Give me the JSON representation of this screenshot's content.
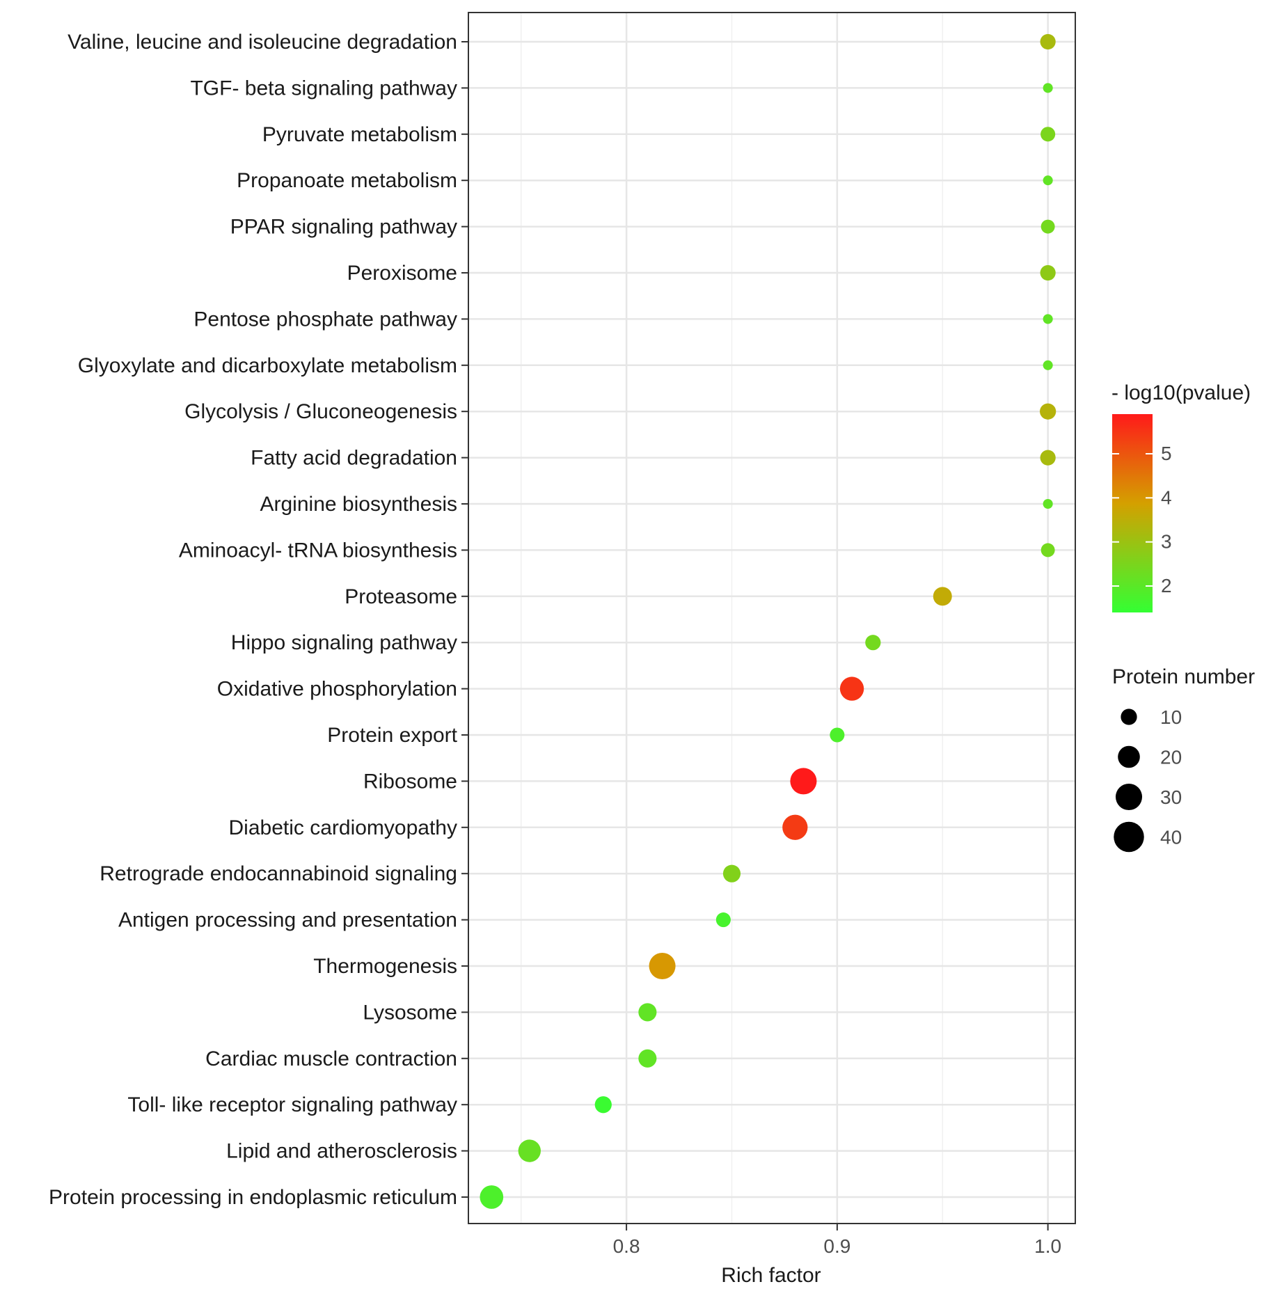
{
  "chart_data": {
    "type": "scatter",
    "xlabel": "Rich factor",
    "ylabel": "",
    "xlim": [
      0.725,
      1.013
    ],
    "x_ticks": [
      0.8,
      0.9,
      1.0
    ],
    "x_tick_labels": [
      "0.8",
      "0.9",
      "1.0"
    ],
    "grid": true,
    "color_legend": {
      "title": "- log10(pvalue)",
      "range": [
        1.4,
        5.9
      ],
      "ticks": [
        2,
        3,
        4,
        5
      ],
      "tick_labels": [
        "2",
        "3",
        "4",
        "5"
      ],
      "low_color": "#33ff33",
      "mid_color": "#d4a000",
      "high_color": "#ff1a1a"
    },
    "size_legend": {
      "title": "Protein number",
      "values": [
        10,
        20,
        30,
        40
      ],
      "labels": [
        "10",
        "20",
        "30",
        "40"
      ],
      "color": "#000000"
    },
    "categories": [
      "Valine, leucine and isoleucine degradation",
      "TGF- beta signaling pathway",
      "Pyruvate metabolism",
      "Propanoate metabolism",
      "PPAR signaling pathway",
      "Peroxisome",
      "Pentose phosphate pathway",
      "Glyoxylate and dicarboxylate metabolism",
      "Glycolysis / Gluconeogenesis",
      "Fatty acid degradation",
      "Arginine biosynthesis",
      "Aminoacyl- tRNA biosynthesis",
      "Proteasome",
      "Hippo signaling pathway",
      "Oxidative phosphorylation",
      "Protein export",
      "Ribosome",
      "Diabetic cardiomyopathy",
      "Retrograde endocannabinoid signaling",
      "Antigen processing and presentation",
      "Thermogenesis",
      "Lysosome",
      "Cardiac muscle contraction",
      "Toll- like receptor signaling pathway",
      "Lipid and atherosclerosis",
      "Protein processing in endoplasmic reticulum"
    ],
    "rich_factor": [
      1.0,
      1.0,
      1.0,
      1.0,
      1.0,
      1.0,
      1.0,
      1.0,
      1.0,
      1.0,
      1.0,
      1.0,
      0.95,
      0.917,
      0.907,
      0.9,
      0.884,
      0.88,
      0.85,
      0.846,
      0.817,
      0.81,
      0.81,
      0.789,
      0.754,
      0.736
    ],
    "protein_number": [
      9,
      3,
      8,
      3,
      7,
      9,
      3,
      3,
      10,
      9,
      3,
      7,
      14,
      9,
      24,
      8,
      30,
      27,
      12,
      8,
      30,
      13,
      13,
      11,
      21,
      23
    ],
    "neg_log10_pvalue": [
      3.2,
      2.1,
      2.5,
      2.1,
      2.4,
      2.8,
      2.1,
      2.1,
      3.4,
      3.2,
      2.1,
      2.4,
      3.6,
      2.4,
      5.5,
      1.8,
      5.9,
      5.4,
      2.6,
      1.7,
      4.0,
      2.1,
      2.1,
      1.5,
      2.2,
      1.8
    ]
  }
}
